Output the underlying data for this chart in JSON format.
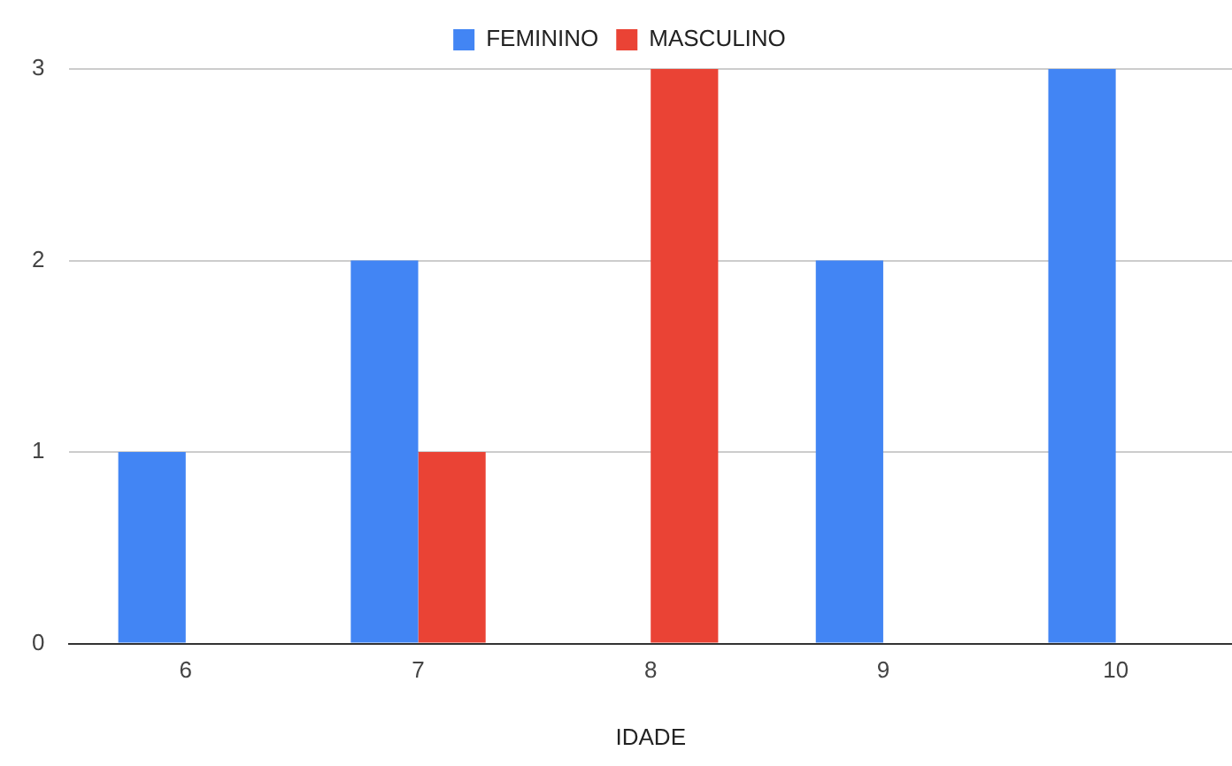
{
  "chart_data": {
    "type": "bar",
    "xlabel": "IDADE",
    "categories": [
      "6",
      "7",
      "8",
      "9",
      "10"
    ],
    "series": [
      {
        "name": "FEMININO",
        "color": "#4285f4",
        "values": [
          1,
          2,
          0,
          2,
          3
        ]
      },
      {
        "name": "MASCULINO",
        "color": "#ea4335",
        "values": [
          0,
          1,
          3,
          0,
          0
        ]
      }
    ],
    "ylim": [
      0,
      3
    ],
    "yticks": [
      0,
      1,
      2,
      3
    ],
    "grid": "y",
    "legend": "top"
  }
}
